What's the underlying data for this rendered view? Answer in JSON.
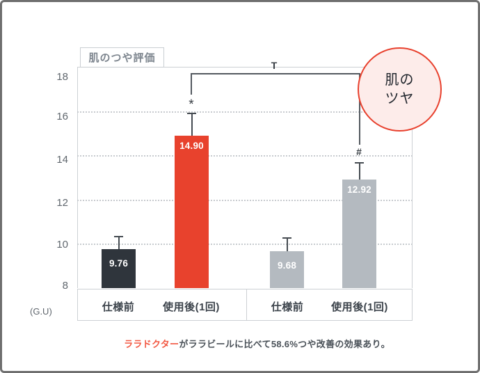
{
  "chart_data": {
    "type": "bar",
    "title": "肌のつや評価",
    "ylabel_unit": "(G.U)",
    "ylim": [
      8,
      18
    ],
    "grid": "horizontal dotted lines at 10, 12, 14, 16; legend none",
    "y_ticks": [
      18,
      16,
      14,
      12,
      10,
      8
    ],
    "y_ticks_display": [
      "18",
      "16",
      "14",
      "12",
      "10",
      "8"
    ],
    "categories": [
      "仕様前",
      "使用後(1回)",
      "仕様前",
      "使用後(1回)"
    ],
    "values": [
      9.76,
      14.9,
      9.68,
      12.92
    ],
    "values_display": [
      "9.76",
      "14.90",
      "9.68",
      "12.92"
    ],
    "error_bar_tops": [
      10.35,
      15.92,
      10.3,
      13.7
    ],
    "bar_colors": [
      "#2f353c",
      "#e8422d",
      "#b4bac0",
      "#b4bac0"
    ],
    "significance": {
      "red_bar_mark": "*",
      "gray_bar_mark": "#",
      "bracket_label": "T"
    }
  },
  "annotation_circle": {
    "line1": "肌の",
    "line2": "ツヤ",
    "border_color": "#e8402d",
    "fill_color": "#fdecea"
  },
  "caption": {
    "brand": "ララドクター",
    "text": "がララビールに比べて58.6%つや改善の効果あり。"
  },
  "colors": {
    "accent_red": "#e8422d",
    "dark_bar": "#2f353c",
    "gray_bar": "#b4bac0",
    "frame_border": "#6f6f6f",
    "plot_border": "#ccd0d4",
    "text_gray": "#5f666d"
  }
}
